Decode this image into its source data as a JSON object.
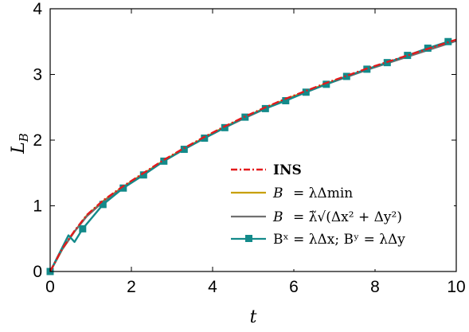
{
  "chart_data": {
    "type": "line",
    "xlabel": "t",
    "ylabel": "L_B",
    "xlim": [
      0,
      10
    ],
    "ylim": [
      0,
      4
    ],
    "xticks": [
      "0",
      "2",
      "4",
      "6",
      "8",
      "10"
    ],
    "yticks": [
      "0",
      "1",
      "2",
      "3",
      "4"
    ],
    "grid": false,
    "legend_position": "bottom-right",
    "series": [
      {
        "name": "INS",
        "color": "#e31a1c",
        "style": "dash-dot",
        "x": [
          0,
          0.3,
          0.6,
          0.9,
          1.3,
          1.8,
          2.3,
          2.8,
          3.3,
          3.8,
          4.3,
          4.8,
          5.3,
          5.8,
          6.3,
          6.8,
          7.3,
          7.8,
          8.3,
          8.8,
          9.3,
          9.8,
          10
        ],
        "y": [
          0,
          0.35,
          0.62,
          0.86,
          1.08,
          1.3,
          1.5,
          1.7,
          1.88,
          2.05,
          2.21,
          2.36,
          2.5,
          2.63,
          2.75,
          2.87,
          2.98,
          3.09,
          3.19,
          3.29,
          3.39,
          3.49,
          3.53
        ]
      },
      {
        "name": "B = λΔmin",
        "color": "#c8a000",
        "style": "solid",
        "x": [
          0,
          0.3,
          0.6,
          0.9,
          1.3,
          1.8,
          2.3,
          2.8,
          3.3,
          3.8,
          4.3,
          4.8,
          5.3,
          5.8,
          6.3,
          6.8,
          7.3,
          7.8,
          8.3,
          8.8,
          9.3,
          9.8,
          10
        ],
        "y": [
          0,
          0.34,
          0.61,
          0.85,
          1.07,
          1.29,
          1.49,
          1.69,
          1.87,
          2.04,
          2.2,
          2.35,
          2.49,
          2.62,
          2.74,
          2.86,
          2.97,
          3.08,
          3.18,
          3.28,
          3.38,
          3.48,
          3.52
        ]
      },
      {
        "name": "B = λ̃√(Δx² + Δy²)",
        "color": "#707070",
        "style": "solid",
        "x": [
          0,
          0.3,
          0.6,
          0.9,
          1.3,
          1.8,
          2.3,
          2.8,
          3.3,
          3.8,
          4.3,
          4.8,
          5.3,
          5.8,
          6.3,
          6.8,
          7.3,
          7.8,
          8.3,
          8.8,
          9.3,
          9.8,
          10
        ],
        "y": [
          0,
          0.34,
          0.61,
          0.84,
          1.06,
          1.28,
          1.48,
          1.68,
          1.86,
          2.03,
          2.19,
          2.34,
          2.48,
          2.61,
          2.73,
          2.85,
          2.96,
          3.07,
          3.17,
          3.27,
          3.37,
          3.47,
          3.51
        ]
      },
      {
        "name": "Bˣ = λΔx; Bʸ = λΔy",
        "color": "#138a8a",
        "style": "solid-square-markers",
        "x": [
          0,
          0.45,
          0.6,
          0.8,
          1.3,
          1.8,
          2.3,
          2.8,
          3.3,
          3.8,
          4.3,
          4.8,
          5.3,
          5.8,
          6.3,
          6.8,
          7.3,
          7.8,
          8.3,
          8.8,
          9.3,
          9.8,
          10
        ],
        "y": [
          0,
          0.55,
          0.45,
          0.65,
          1.02,
          1.27,
          1.47,
          1.68,
          1.86,
          2.03,
          2.19,
          2.35,
          2.48,
          2.6,
          2.73,
          2.85,
          2.97,
          3.08,
          3.18,
          3.29,
          3.4,
          3.5,
          3.52
        ],
        "markers_x": [
          0,
          0.8,
          1.3,
          1.8,
          2.3,
          2.8,
          3.3,
          3.8,
          4.3,
          4.8,
          5.3,
          5.8,
          6.3,
          6.8,
          7.3,
          7.8,
          8.3,
          8.8,
          9.3,
          9.8
        ]
      }
    ],
    "legend": {
      "entries": [
        {
          "label": "INS"
        },
        {
          "label_lhs": "B",
          "label_rhs": "= λΔmin"
        },
        {
          "label_lhs": "B",
          "label_rhs": "= λ̃√(Δx² + Δy²)"
        },
        {
          "label": "Bˣ = λΔx;  Bʸ = λΔy"
        }
      ]
    }
  }
}
